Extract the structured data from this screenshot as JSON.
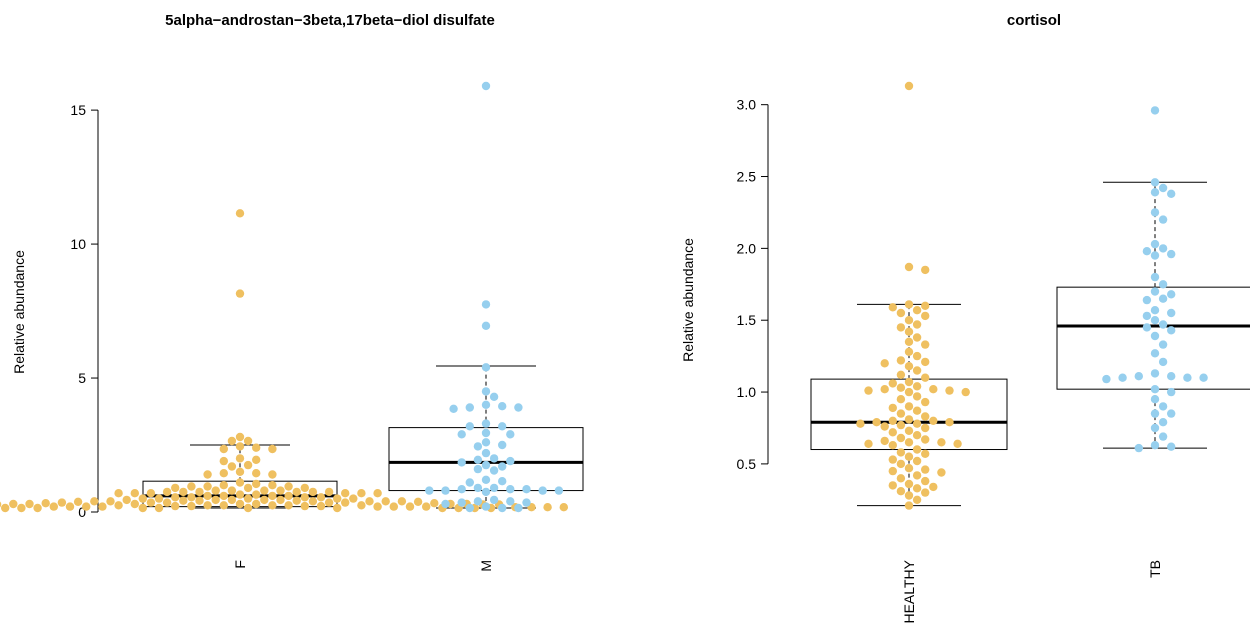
{
  "colors": {
    "group1": "#EFC060",
    "group2": "#96CFEE",
    "box": "#000000"
  },
  "chart_data": [
    {
      "type": "box",
      "title": "5alpha−androstan−3beta,17beta−diol disulfate",
      "xlabel": "",
      "ylabel": "Relative abundance",
      "ylim": [
        0,
        15.9
      ],
      "yticks": [
        0,
        5,
        10,
        15
      ],
      "ytick_labels": [
        "0",
        "5",
        "10",
        "15"
      ],
      "categories": [
        "F",
        "M"
      ],
      "boxes": [
        {
          "category": "F",
          "whisker_low": 0.15,
          "q1": 0.2,
          "median": 0.6,
          "q3": 1.15,
          "whisker_high": 2.5
        },
        {
          "category": "M",
          "whisker_low": 0.15,
          "q1": 0.8,
          "median": 1.85,
          "q3": 3.15,
          "whisker_high": 5.45
        }
      ],
      "series": [
        {
          "category": "F",
          "color_key": "group1",
          "values": [
            11.15,
            8.15,
            2.8,
            2.65,
            2.65,
            2.45,
            2.4,
            2.35,
            2.35,
            2.0,
            1.95,
            1.9,
            1.75,
            1.7,
            1.5,
            1.45,
            1.45,
            1.4,
            1.4,
            1.1,
            1.05,
            1.0,
            1.0,
            0.95,
            0.95,
            0.95,
            0.9,
            0.9,
            0.9,
            0.8,
            0.8,
            0.8,
            0.8,
            0.75,
            0.75,
            0.75,
            0.75,
            0.75,
            0.75,
            0.7,
            0.7,
            0.7,
            0.7,
            0.7,
            0.7,
            0.65,
            0.65,
            0.6,
            0.6,
            0.6,
            0.6,
            0.55,
            0.55,
            0.55,
            0.55,
            0.5,
            0.5,
            0.5,
            0.5,
            0.5,
            0.45,
            0.45,
            0.45,
            0.45,
            0.45,
            0.42,
            0.42,
            0.42,
            0.4,
            0.4,
            0.4,
            0.4,
            0.4,
            0.4,
            0.38,
            0.38,
            0.35,
            0.35,
            0.35,
            0.35,
            0.35,
            0.33,
            0.33,
            0.3,
            0.3,
            0.3,
            0.3,
            0.3,
            0.3,
            0.3,
            0.28,
            0.28,
            0.28,
            0.28,
            0.25,
            0.25,
            0.25,
            0.25,
            0.25,
            0.25,
            0.22,
            0.22,
            0.22,
            0.22,
            0.2,
            0.2,
            0.2,
            0.2,
            0.2,
            0.2,
            0.2,
            0.2,
            0.18,
            0.18,
            0.18,
            0.18,
            0.18,
            0.18,
            0.18,
            0.18,
            0.15,
            0.15,
            0.15,
            0.15,
            0.15,
            0.15,
            0.15,
            0.15,
            0.15,
            0.15,
            0.15,
            0.15
          ]
        },
        {
          "category": "M",
          "color_key": "group2",
          "values": [
            15.9,
            7.75,
            6.95,
            5.4,
            4.5,
            4.3,
            4.0,
            3.95,
            3.9,
            3.9,
            3.85,
            3.3,
            3.2,
            3.2,
            2.95,
            2.9,
            2.9,
            2.6,
            2.5,
            2.45,
            2.2,
            2.0,
            1.95,
            1.9,
            1.85,
            1.75,
            1.7,
            1.6,
            1.55,
            1.2,
            1.15,
            1.1,
            0.9,
            0.9,
            0.85,
            0.85,
            0.85,
            0.8,
            0.8,
            0.8,
            0.8,
            0.75,
            0.45,
            0.4,
            0.4,
            0.35,
            0.35,
            0.3,
            0.2,
            0.15,
            0.15,
            0.15
          ]
        }
      ]
    },
    {
      "type": "box",
      "title": "cortisol",
      "xlabel": "",
      "ylabel": "Relative abundance",
      "ylim": [
        0.2,
        3.13
      ],
      "yticks": [
        0.5,
        1.0,
        1.5,
        2.0,
        2.5,
        3.0
      ],
      "ytick_labels": [
        "0.5",
        "1.0",
        "1.5",
        "2.0",
        "2.5",
        "3.0"
      ],
      "categories": [
        "HEALTHY",
        "TB"
      ],
      "boxes": [
        {
          "category": "HEALTHY",
          "whisker_low": 0.21,
          "q1": 0.6,
          "median": 0.79,
          "q3": 1.09,
          "whisker_high": 1.61
        },
        {
          "category": "TB",
          "whisker_low": 0.61,
          "q1": 1.02,
          "median": 1.46,
          "q3": 1.73,
          "whisker_high": 2.46
        }
      ],
      "series": [
        {
          "category": "HEALTHY",
          "color_key": "group1",
          "values": [
            3.13,
            1.87,
            1.85,
            1.61,
            1.6,
            1.59,
            1.57,
            1.55,
            1.53,
            1.5,
            1.47,
            1.45,
            1.42,
            1.38,
            1.35,
            1.33,
            1.28,
            1.25,
            1.22,
            1.21,
            1.2,
            1.18,
            1.15,
            1.12,
            1.1,
            1.07,
            1.06,
            1.04,
            1.03,
            1.02,
            1.02,
            1.01,
            1.01,
            1.0,
            1.0,
            0.97,
            0.95,
            0.93,
            0.9,
            0.89,
            0.87,
            0.85,
            0.83,
            0.81,
            0.8,
            0.8,
            0.79,
            0.79,
            0.78,
            0.78,
            0.77,
            0.76,
            0.75,
            0.73,
            0.72,
            0.7,
            0.68,
            0.67,
            0.66,
            0.65,
            0.65,
            0.64,
            0.64,
            0.63,
            0.6,
            0.58,
            0.57,
            0.55,
            0.53,
            0.52,
            0.5,
            0.47,
            0.46,
            0.45,
            0.44,
            0.42,
            0.4,
            0.38,
            0.36,
            0.35,
            0.34,
            0.33,
            0.31,
            0.3,
            0.28,
            0.25,
            0.21
          ]
        },
        {
          "category": "TB",
          "color_key": "group2",
          "values": [
            2.96,
            2.46,
            2.42,
            2.39,
            2.38,
            2.25,
            2.2,
            2.03,
            2.0,
            1.98,
            1.96,
            1.95,
            1.8,
            1.75,
            1.7,
            1.68,
            1.65,
            1.64,
            1.57,
            1.55,
            1.53,
            1.5,
            1.47,
            1.45,
            1.43,
            1.39,
            1.33,
            1.27,
            1.21,
            1.13,
            1.11,
            1.11,
            1.1,
            1.1,
            1.1,
            1.09,
            1.02,
            1.0,
            0.95,
            0.9,
            0.85,
            0.85,
            0.79,
            0.75,
            0.69,
            0.63,
            0.62,
            0.61
          ]
        }
      ]
    }
  ]
}
